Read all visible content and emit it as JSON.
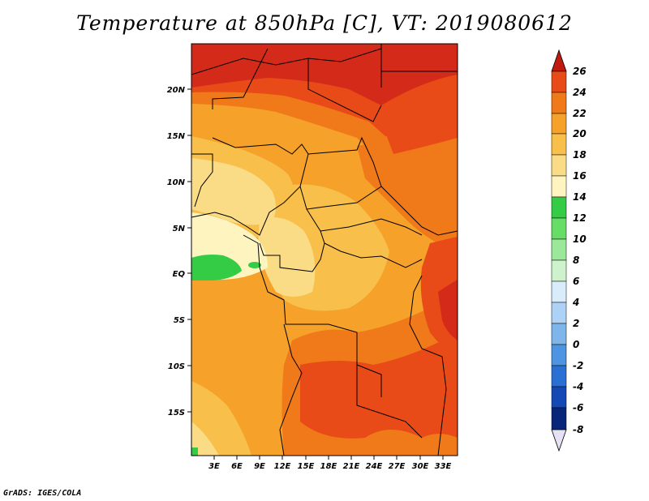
{
  "title": "Temperature at 850hPa [C], VT: 2019080612",
  "footer": "GrADS: IGES/COLA",
  "axes": {
    "lat_labels": [
      "20N",
      "15N",
      "10N",
      "5N",
      "EQ",
      "5S",
      "10S",
      "15S"
    ],
    "lon_labels": [
      "3E",
      "6E",
      "9E",
      "12E",
      "15E",
      "18E",
      "21E",
      "24E",
      "27E",
      "30E",
      "33E"
    ]
  },
  "colorbar": {
    "levels": [
      "26",
      "24",
      "22",
      "20",
      "18",
      "16",
      "14",
      "12",
      "10",
      "8",
      "6",
      "4",
      "2",
      "0",
      "-2",
      "-4",
      "-6",
      "-8"
    ],
    "colors": {
      "c26": "#d42a1a",
      "c24": "#e84a18",
      "c22": "#f07a1a",
      "c20": "#f5a12a",
      "c18": "#f8c04a",
      "c16": "#fbdc86",
      "c14": "#fef4c0",
      "c12": "#33cc44",
      "c10": "#66dd66",
      "c8": "#9ce89a",
      "c6": "#cdf2cc",
      "c4": "#d8ecfb",
      "c2": "#aed2f5",
      "c0": "#7eb6ec",
      "cm2": "#4d95e2",
      "cm4": "#2a70d4",
      "cm6": "#1448b4",
      "cm8": "#08257a",
      "ctop": "#c01a10",
      "cbottom": "#e4e2f4"
    }
  }
}
